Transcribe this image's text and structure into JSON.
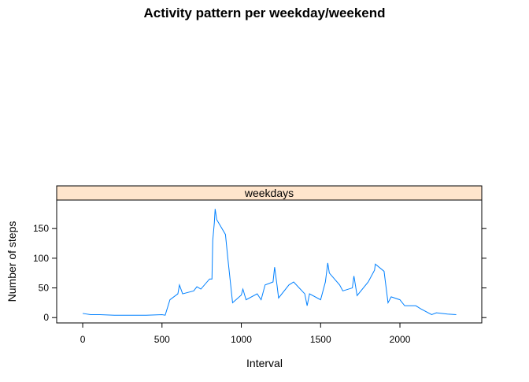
{
  "chart_data": {
    "type": "line",
    "title": "Activity pattern per weekday/weekend",
    "strip": "weekdays",
    "xlabel": "Interval",
    "ylabel": "Number of steps",
    "color": "#0080ff",
    "strip_color": "#ffe5cc",
    "x": [
      0,
      50,
      100,
      200,
      300,
      400,
      500,
      520,
      550,
      600,
      610,
      630,
      700,
      720,
      745,
      800,
      815,
      820,
      830,
      835,
      845,
      900,
      915,
      935,
      945,
      1000,
      1010,
      1030,
      1100,
      1125,
      1150,
      1200,
      1210,
      1225,
      1235,
      1300,
      1330,
      1400,
      1415,
      1430,
      1500,
      1530,
      1545,
      1555,
      1620,
      1640,
      1700,
      1710,
      1730,
      1800,
      1840,
      1845,
      1900,
      1925,
      1945,
      2000,
      2030,
      2100,
      2130,
      2200,
      2230,
      2300,
      2355
    ],
    "values": [
      7,
      5,
      5,
      4,
      4,
      4,
      5,
      4,
      30,
      40,
      55,
      40,
      45,
      52,
      48,
      65,
      65,
      130,
      160,
      183,
      165,
      140,
      100,
      50,
      25,
      38,
      48,
      30,
      40,
      30,
      55,
      60,
      85,
      55,
      33,
      55,
      60,
      40,
      20,
      40,
      30,
      60,
      92,
      75,
      55,
      45,
      50,
      70,
      37,
      60,
      80,
      90,
      78,
      25,
      35,
      30,
      20,
      20,
      15,
      5,
      8,
      6,
      5
    ],
    "xlim": [
      -164,
      2516
    ],
    "ylim": [
      -9,
      198
    ],
    "xticks": [
      0,
      500,
      1000,
      1500,
      2000
    ],
    "yticks": [
      0,
      50,
      100,
      150
    ]
  }
}
